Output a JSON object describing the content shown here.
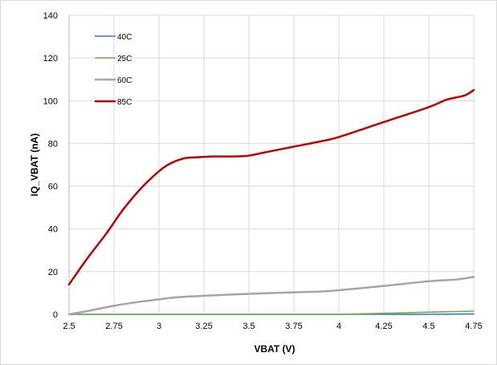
{
  "chart_data": {
    "type": "line",
    "title": "",
    "xlabel": "VBAT (V)",
    "ylabel": "IQ_VBAT (nA)",
    "xlim": [
      2.5,
      4.75
    ],
    "ylim": [
      0,
      140
    ],
    "x_ticks": [
      "2.5",
      "2.75",
      "3",
      "3.25",
      "3.5",
      "3.75",
      "4",
      "4.25",
      "4.5",
      "4.75"
    ],
    "y_ticks": [
      "0",
      "20",
      "40",
      "60",
      "80",
      "100",
      "120",
      "140"
    ],
    "grid": true,
    "legend_position": "top-left",
    "series": [
      {
        "name": "40C",
        "color": "#4472c4",
        "x": [
          2.5,
          2.75,
          3,
          3.25,
          3.5,
          3.75,
          4,
          4.25,
          4.5,
          4.75
        ],
        "y": [
          0,
          0,
          0,
          0,
          0,
          0,
          0,
          0,
          0,
          0.2
        ]
      },
      {
        "name": "25C",
        "color": "#70ad47",
        "x": [
          2.5,
          2.75,
          3,
          3.25,
          3.5,
          3.75,
          4,
          4.25,
          4.5,
          4.75
        ],
        "y": [
          0,
          0,
          0,
          0,
          0,
          0,
          0,
          0.5,
          1,
          1.5
        ]
      },
      {
        "name": "60C",
        "color": "#a5a5a5",
        "x": [
          2.5,
          2.6,
          2.75,
          2.9,
          3,
          3.1,
          3.25,
          3.5,
          3.75,
          3.9,
          4,
          4.25,
          4.5,
          4.65,
          4.75
        ],
        "y": [
          0,
          1.5,
          4,
          6,
          7,
          8,
          8.7,
          9.6,
          10.3,
          10.7,
          11.3,
          13.3,
          15.5,
          16.3,
          17.5
        ]
      },
      {
        "name": "85C",
        "color": "#c00000",
        "x": [
          2.5,
          2.6,
          2.7,
          2.75,
          2.8,
          2.9,
          3,
          3.05,
          3.1,
          3.15,
          3.2,
          3.25,
          3.3,
          3.4,
          3.45,
          3.5,
          3.6,
          3.75,
          3.9,
          4,
          4.25,
          4.5,
          4.6,
          4.7,
          4.75
        ],
        "y": [
          14,
          26,
          37,
          43,
          49,
          59,
          67,
          70,
          72,
          73.2,
          73.5,
          73.7,
          73.9,
          73.9,
          74,
          74.3,
          76,
          78.5,
          81,
          83,
          90,
          97,
          100.5,
          102.5,
          105
        ]
      }
    ]
  }
}
